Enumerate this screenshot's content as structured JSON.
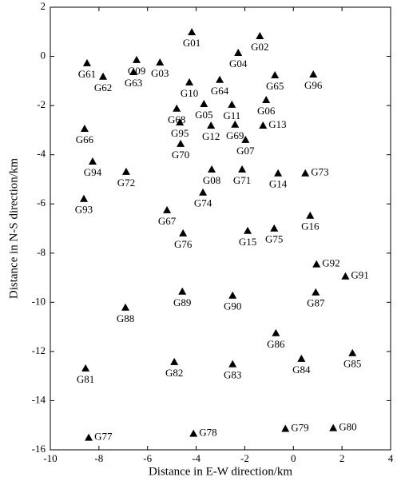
{
  "chart_data": {
    "type": "scatter",
    "x_label": "Distance in E-W direction/km",
    "y_label": "Distance in N-S direction/km",
    "xlim": [
      -10,
      4
    ],
    "xticks": [
      -10,
      -8,
      -6,
      -4,
      -2,
      0,
      2,
      4
    ],
    "ylim": [
      -16,
      2
    ],
    "yticks": [
      -16,
      -14,
      -12,
      -10,
      -8,
      -6,
      -4,
      -2,
      0,
      2
    ],
    "marker": "triangle",
    "color": "#000000",
    "point_labels": [
      "G01",
      "G02",
      "G03",
      "G04",
      "G09",
      "G61",
      "G62",
      "G63",
      "G65",
      "G96",
      "G10",
      "G64",
      "G06",
      "G68",
      "G05",
      "G11",
      "G95",
      "G12",
      "G69",
      "G13",
      "G66",
      "G07",
      "G70",
      "G94",
      "G08",
      "G71",
      "G72",
      "G14",
      "G73",
      "G93",
      "G74",
      "G67",
      "G16",
      "G76",
      "G15",
      "G75",
      "G92",
      "G91",
      "G88",
      "G89",
      "G90",
      "G87",
      "G86",
      "G84",
      "G85",
      "G82",
      "G83",
      "G81",
      "G77",
      "G78",
      "G79",
      "G80"
    ],
    "x": [
      -4.18,
      -1.38,
      -5.49,
      -2.27,
      -6.45,
      -8.49,
      -7.83,
      -6.58,
      -0.76,
      0.82,
      -4.28,
      -3.03,
      -1.12,
      -4.8,
      -3.68,
      -2.53,
      -4.67,
      -3.39,
      -2.4,
      -1.25,
      -8.59,
      -1.97,
      -4.64,
      -8.26,
      -3.36,
      -2.11,
      -6.88,
      -0.63,
      0.49,
      -8.62,
      -3.72,
      -5.2,
      0.69,
      -4.54,
      -1.88,
      -0.79,
      0.95,
      2.14,
      -6.91,
      -4.57,
      -2.5,
      0.92,
      -0.72,
      0.33,
      2.43,
      -4.9,
      -2.5,
      -8.55,
      -8.42,
      -4.11,
      -0.33,
      1.64
    ],
    "values": [
      0.99,
      0.83,
      -0.24,
      0.15,
      -0.14,
      -0.27,
      -0.82,
      -0.63,
      -0.76,
      -0.73,
      -1.05,
      -0.95,
      -1.77,
      -2.12,
      -1.93,
      -1.96,
      -2.68,
      -2.81,
      -2.77,
      -2.81,
      -2.94,
      -3.39,
      -3.55,
      -4.27,
      -4.59,
      -4.59,
      -4.69,
      -4.75,
      -4.75,
      -5.79,
      -5.53,
      -6.25,
      -6.47,
      -7.19,
      -7.09,
      -6.99,
      -8.45,
      -8.94,
      -10.21,
      -9.56,
      -9.72,
      -9.59,
      -11.25,
      -12.29,
      -12.06,
      -12.42,
      -12.51,
      -12.68,
      -15.5,
      -15.34,
      -15.14,
      -15.11
    ]
  }
}
